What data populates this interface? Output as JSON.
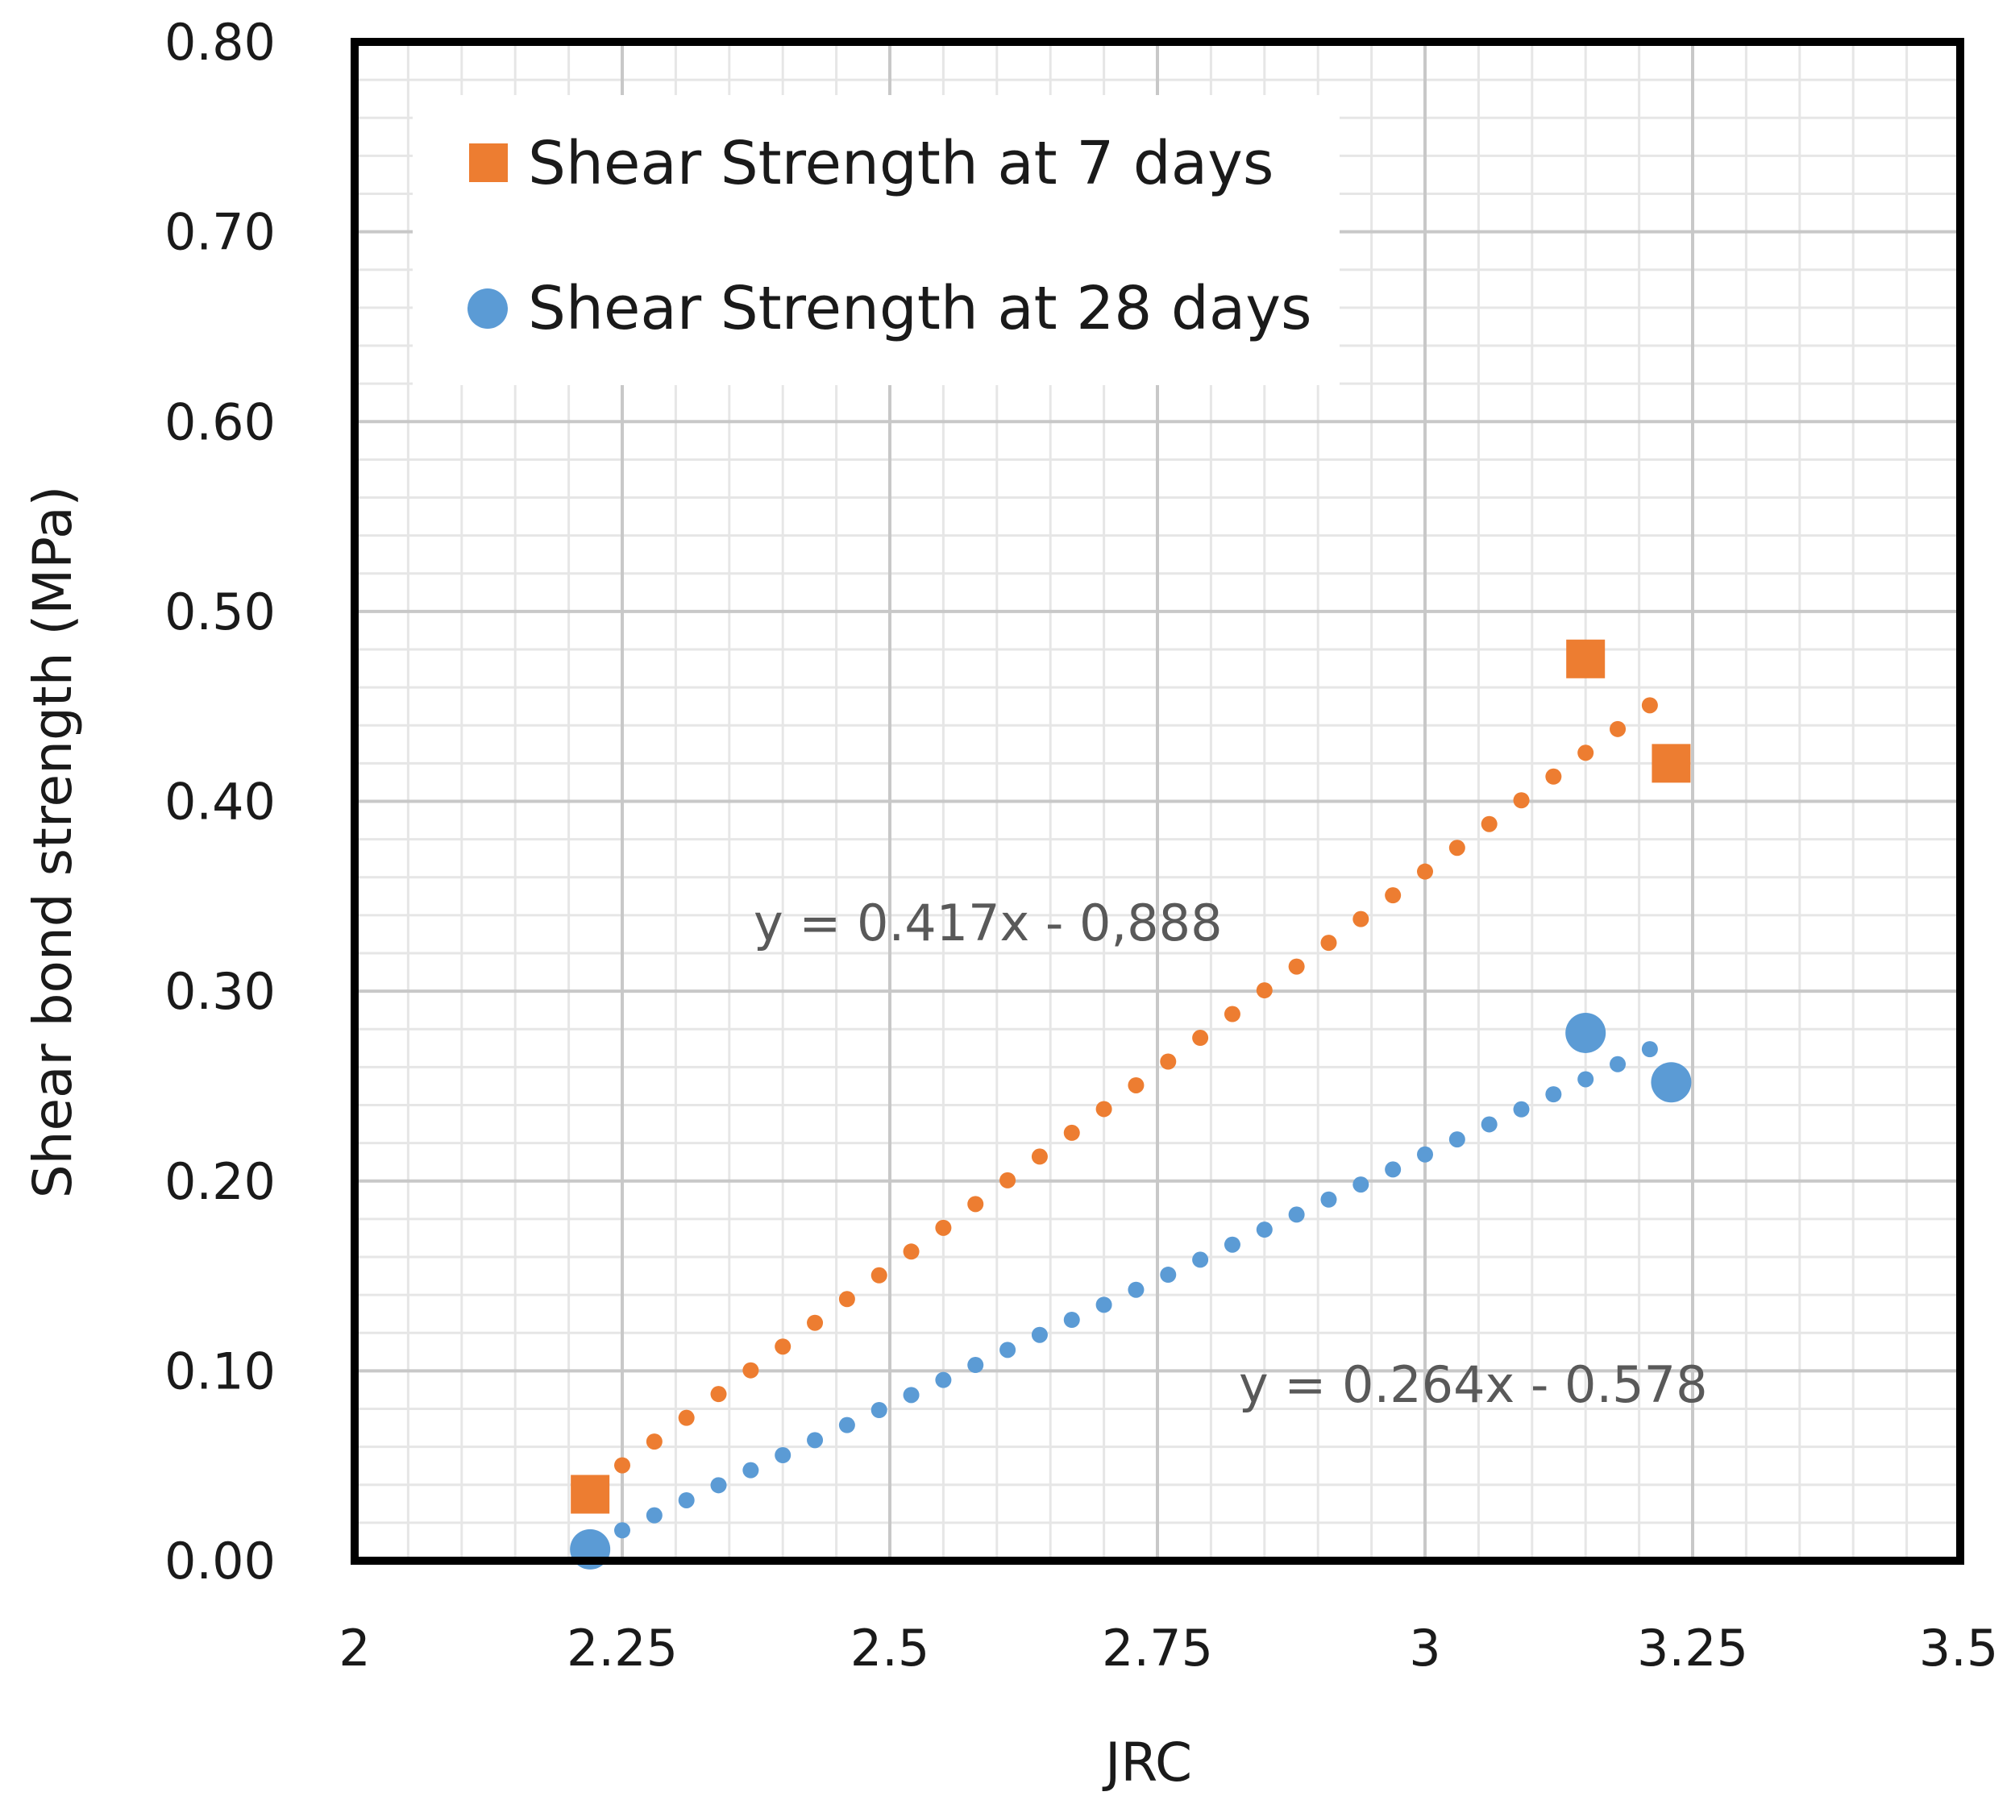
{
  "chart_data": {
    "type": "scatter",
    "xlabel": "JRC",
    "ylabel": "Shear bond strength (MPa)",
    "xlim": [
      2,
      3.5
    ],
    "ylim": [
      0,
      0.8
    ],
    "x_ticks": [
      "2",
      "2.25",
      "2.5",
      "2.75",
      "3",
      "3.25",
      "3.5"
    ],
    "y_ticks": [
      "0.00",
      "0.10",
      "0.20",
      "0.30",
      "0.40",
      "0.50",
      "0.60",
      "0.70",
      "0.80"
    ],
    "x_tick_values": [
      2,
      2.25,
      2.5,
      2.75,
      3,
      3.25,
      3.5
    ],
    "y_tick_values": [
      0,
      0.1,
      0.2,
      0.3,
      0.4,
      0.5,
      0.6,
      0.7,
      0.8
    ],
    "grid": true,
    "minor_grid": true,
    "legend_position": "top-left",
    "series": [
      {
        "name": "Shear Strength at 7 days",
        "marker": "square",
        "color": "#ED7D31",
        "x": [
          2.22,
          3.15,
          3.23
        ],
        "y": [
          0.035,
          0.475,
          0.42
        ],
        "trendline": {
          "equation": "y = 0.417x - 0,888",
          "slope": 0.417,
          "intercept": -0.888,
          "x_range": [
            2.25,
            3.21
          ],
          "style": "dotted"
        }
      },
      {
        "name": "Shear Strength at 28 days",
        "marker": "circle",
        "color": "#5B9BD5",
        "x": [
          2.22,
          3.15,
          3.23
        ],
        "y": [
          0.006,
          0.278,
          0.252
        ],
        "trendline": {
          "equation": "y = 0.264x - 0.578",
          "slope": 0.264,
          "intercept": -0.578,
          "x_range": [
            2.25,
            3.21
          ],
          "style": "dotted"
        }
      }
    ]
  }
}
